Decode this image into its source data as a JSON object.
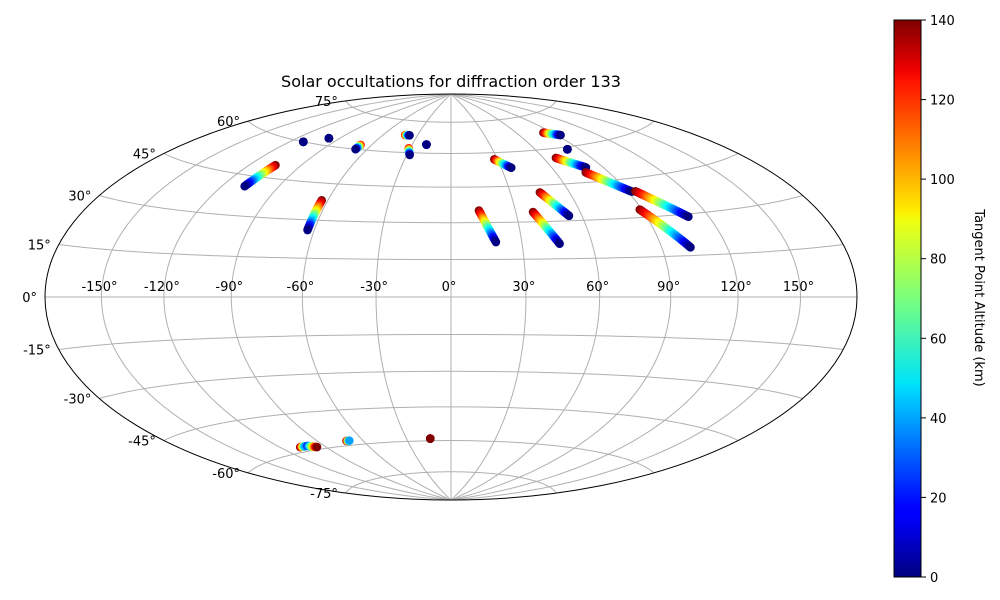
{
  "chart_data": {
    "type": "scatter",
    "projection": "hammer",
    "title": "Solar occultations for diffraction order 133",
    "x_tick_labels": [
      "-150°",
      "-120°",
      "-90°",
      "-60°",
      "-30°",
      "0°",
      "30°",
      "60°",
      "90°",
      "120°",
      "150°"
    ],
    "x_ticks": [
      -150,
      -120,
      -90,
      -60,
      -30,
      0,
      30,
      60,
      90,
      120,
      150
    ],
    "y_tick_labels": [
      "-75°",
      "-60°",
      "-45°",
      "-30°",
      "-15°",
      "0°",
      "15°",
      "30°",
      "45°",
      "60°",
      "75°"
    ],
    "y_ticks": [
      -75,
      -60,
      -45,
      -30,
      -15,
      0,
      15,
      30,
      45,
      60,
      75
    ],
    "xlim": [
      -180,
      180
    ],
    "ylim": [
      -90,
      90
    ],
    "grid": true,
    "colorbar": {
      "label": "Tangent Point Altitude (km)",
      "colormap": "jet",
      "range": [
        0,
        140
      ],
      "tick_labels": [
        "0",
        "20",
        "40",
        "60",
        "80",
        "100",
        "120",
        "140"
      ],
      "ticks": [
        0,
        20,
        40,
        60,
        80,
        100,
        120,
        140
      ]
    },
    "occultations": [
      {
        "lon_start": -111,
        "lat_start": 60,
        "lon_end": -111,
        "lat_end": 60,
        "alt_start": 5,
        "alt_end": 0
      },
      {
        "lon_start": -98,
        "lat_start": 63,
        "lon_end": -98,
        "lat_end": 63,
        "alt_start": 5,
        "alt_end": 0
      },
      {
        "lon_start": -105,
        "lat_start": 50,
        "lon_end": -108,
        "lat_end": 41,
        "alt_start": 140,
        "alt_end": 0
      },
      {
        "lon_start": -68,
        "lat_start": 62,
        "lon_end": -68,
        "lat_end": 60,
        "alt_start": 120,
        "alt_end": 0
      },
      {
        "lon_start": -63,
        "lat_start": 38,
        "lon_end": -63,
        "lat_end": 26,
        "alt_start": 140,
        "alt_end": 0
      },
      {
        "lon_start": -41,
        "lat_start": 68,
        "lon_end": -37,
        "lat_end": 68,
        "alt_start": 120,
        "alt_end": 0
      },
      {
        "lon_start": -31,
        "lat_start": 62,
        "lon_end": -28,
        "lat_end": 59,
        "alt_start": 120,
        "alt_end": 0
      },
      {
        "lon_start": -19,
        "lat_start": 64,
        "lon_end": -19,
        "lat_end": 64,
        "alt_start": 20,
        "alt_end": 0
      },
      {
        "lon_start": 13,
        "lat_start": 35,
        "lon_end": 19,
        "lat_end": 22,
        "alt_start": 140,
        "alt_end": 0
      },
      {
        "lon_start": 28,
        "lat_start": 57,
        "lon_end": 36,
        "lat_end": 53,
        "alt_start": 140,
        "alt_end": 0
      },
      {
        "lon_start": 38,
        "lat_start": 34,
        "lon_end": 46,
        "lat_end": 21,
        "alt_start": 140,
        "alt_end": 0
      },
      {
        "lon_start": 45,
        "lat_start": 42,
        "lon_end": 54,
        "lat_end": 32,
        "alt_start": 140,
        "alt_end": 0
      },
      {
        "lon_start": 68,
        "lat_start": 56,
        "lon_end": 80,
        "lat_end": 51,
        "alt_start": 140,
        "alt_end": 0
      },
      {
        "lon_start": 77,
        "lat_start": 49,
        "lon_end": 92,
        "lat_end": 40,
        "alt_start": 140,
        "alt_end": 0
      },
      {
        "lon_start": 82,
        "lat_start": 59,
        "lon_end": 82,
        "lat_end": 59,
        "alt_start": 5,
        "alt_end": 0
      },
      {
        "lon_start": 83,
        "lat_start": 67,
        "lon_end": 93,
        "lat_end": 65,
        "alt_start": 140,
        "alt_end": 0
      },
      {
        "lon_start": 89,
        "lat_start": 33,
        "lon_end": 103,
        "lat_end": 18,
        "alt_start": 140,
        "alt_end": 0
      },
      {
        "lon_start": 94,
        "lat_start": 40,
        "lon_end": 110,
        "lat_end": 29,
        "alt_start": 140,
        "alt_end": 0
      },
      {
        "lon_start": -107,
        "lat_start": -58,
        "lon_end": -103,
        "lat_end": -58,
        "alt_start": 140,
        "alt_end": 40
      },
      {
        "lon_start": -101,
        "lat_start": -58,
        "lon_end": -96,
        "lat_end": -59,
        "alt_start": 20,
        "alt_end": 140
      },
      {
        "lon_start": -71,
        "lat_start": -58,
        "lon_end": -69,
        "lat_end": -58,
        "alt_start": 140,
        "alt_end": 40
      },
      {
        "lon_start": -14,
        "lat_start": -59,
        "lon_end": -14,
        "lat_end": -59,
        "alt_start": 140,
        "alt_end": 140
      }
    ]
  }
}
